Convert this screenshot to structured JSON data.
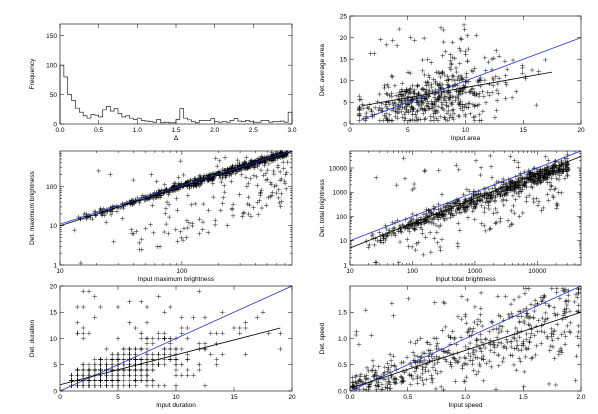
{
  "chart_data": [
    {
      "id": "hist",
      "type": "bar",
      "xlabel": "Δ",
      "ylabel": "Frequency",
      "xlim": [
        0,
        3
      ],
      "ylim": [
        0,
        170
      ],
      "xticks": [
        "0.0",
        "0.5",
        "1.0",
        "1.5",
        "2.0",
        "2.5",
        "3.0"
      ],
      "yticks": [
        "0",
        "50",
        "100",
        "150"
      ],
      "bin_width": 0.05,
      "bin_start": 0,
      "values": [
        100,
        80,
        50,
        40,
        27,
        20,
        14,
        10,
        16,
        15,
        12,
        24,
        30,
        22,
        26,
        18,
        12,
        14,
        10,
        8,
        10,
        6,
        5,
        4,
        3,
        8,
        2,
        3,
        2,
        2,
        8,
        26,
        10,
        7,
        4,
        2,
        6,
        6,
        6,
        9,
        4,
        3,
        4,
        3,
        6,
        9,
        5,
        4,
        6,
        4,
        3,
        3,
        6,
        6,
        3,
        4,
        4,
        5,
        3,
        20
      ]
    },
    {
      "id": "area",
      "type": "scatter",
      "xlabel": "Input area",
      "ylabel": "Det. average area",
      "xlim": [
        0,
        20
      ],
      "ylim": [
        0,
        25
      ],
      "xticks": [
        "0",
        "5",
        "10",
        "15",
        "20"
      ],
      "yticks": [
        "0",
        "5",
        "10",
        "15",
        "20",
        "25"
      ],
      "lines": [
        {
          "color": "#2233cc",
          "x": [
            1,
            20
          ],
          "y": [
            1,
            20
          ]
        },
        {
          "color": "#000000",
          "x": [
            1,
            17.5
          ],
          "y": [
            4.2,
            12
          ]
        }
      ],
      "n_points": 560
    },
    {
      "id": "max_brightness",
      "type": "scatter",
      "scale": "log",
      "xlabel": "Input maximum brightness",
      "ylabel": "Det. maximum brightness",
      "xlim": [
        10,
        800
      ],
      "ylim": [
        1,
        800
      ],
      "xticks": [
        "10",
        "100"
      ],
      "yticks": [
        "1",
        "10",
        "100"
      ],
      "lines": [
        {
          "color": "#2233cc",
          "x": [
            10,
            800
          ],
          "y": [
            11,
            800
          ]
        },
        {
          "color": "#000000",
          "x": [
            10,
            800
          ],
          "y": [
            10,
            770
          ]
        }
      ],
      "n_points": 820
    },
    {
      "id": "total_brightness",
      "type": "scatter",
      "scale": "log",
      "xlabel": "Input total brightness",
      "ylabel": "Det. total brightness",
      "xlim": [
        10,
        50000
      ],
      "ylim": [
        1,
        50000
      ],
      "xticks": [
        "10",
        "100",
        "1000",
        "10000"
      ],
      "yticks": [
        "1",
        "10",
        "100",
        "1000",
        "10000"
      ],
      "lines": [
        {
          "color": "#2233cc",
          "x": [
            10,
            50000
          ],
          "y": [
            10,
            50000
          ]
        },
        {
          "color": "#000000",
          "x": [
            10,
            50000
          ],
          "y": [
            5,
            30000
          ]
        }
      ],
      "n_points": 820
    },
    {
      "id": "duration",
      "type": "scatter",
      "xlabel": "Input duration",
      "ylabel": "Det. duration",
      "xlim": [
        0,
        20
      ],
      "ylim": [
        0,
        20
      ],
      "xticks": [
        "0",
        "5",
        "10",
        "15",
        "20"
      ],
      "yticks": [
        "0",
        "5",
        "10",
        "15",
        "20"
      ],
      "lines": [
        {
          "color": "#2233cc",
          "x": [
            0,
            20
          ],
          "y": [
            0,
            20
          ]
        },
        {
          "color": "#000000",
          "x": [
            0,
            19
          ],
          "y": [
            1.2,
            12
          ]
        }
      ],
      "n_points": 620
    },
    {
      "id": "speed",
      "type": "scatter",
      "xlabel": "Input speed",
      "ylabel": "Det. speed",
      "xlim": [
        0,
        2
      ],
      "ylim": [
        0,
        2
      ],
      "xticks": [
        "0.0",
        "0.5",
        "1.0",
        "1.5",
        "2.0"
      ],
      "yticks": [
        "0.0",
        "0.5",
        "1.0",
        "1.5"
      ],
      "lines": [
        {
          "color": "#2233cc",
          "x": [
            0,
            2
          ],
          "y": [
            0,
            2
          ]
        },
        {
          "color": "#000000",
          "x": [
            0,
            2
          ],
          "y": [
            0.05,
            1.5
          ]
        }
      ],
      "n_points": 560
    }
  ]
}
